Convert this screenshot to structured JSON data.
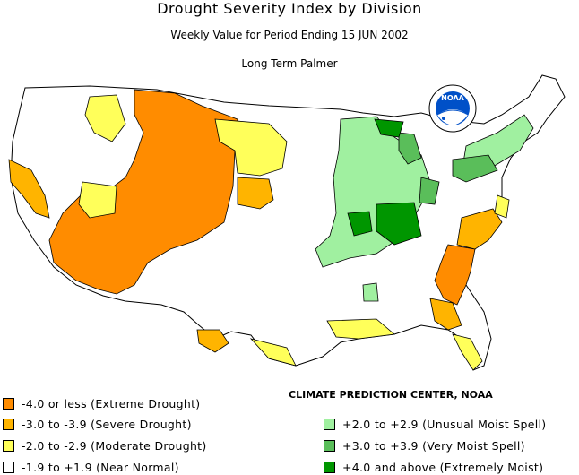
{
  "header": {
    "title": "Drought Severity Index by Division",
    "subtitle": "Weekly Value for Period Ending 15 JUN 2002",
    "index_name": "Long Term Palmer"
  },
  "logo": {
    "text": "NOAA"
  },
  "credit": "CLIMATE PREDICTION CENTER, NOAA",
  "legend": {
    "left": [
      {
        "label": "-4.0 or less (Extreme Drought)",
        "color": "#ff8c00"
      },
      {
        "label": "-3.0 to -3.9 (Severe Drought)",
        "color": "#ffb400"
      },
      {
        "label": "-2.0 to -2.9 (Moderate Drought)",
        "color": "#ffff5a"
      },
      {
        "label": "-1.9 to +1.9 (Near Normal)",
        "color": "#ffffff"
      }
    ],
    "right": [
      {
        "label": "+2.0 to +2.9 (Unusual Moist Spell)",
        "color": "#a0f0a0"
      },
      {
        "label": "+3.0 to +3.9 (Very Moist Spell)",
        "color": "#5abe5a"
      },
      {
        "label": "+4.0 and above (Extremely Moist)",
        "color": "#009600"
      }
    ]
  }
}
